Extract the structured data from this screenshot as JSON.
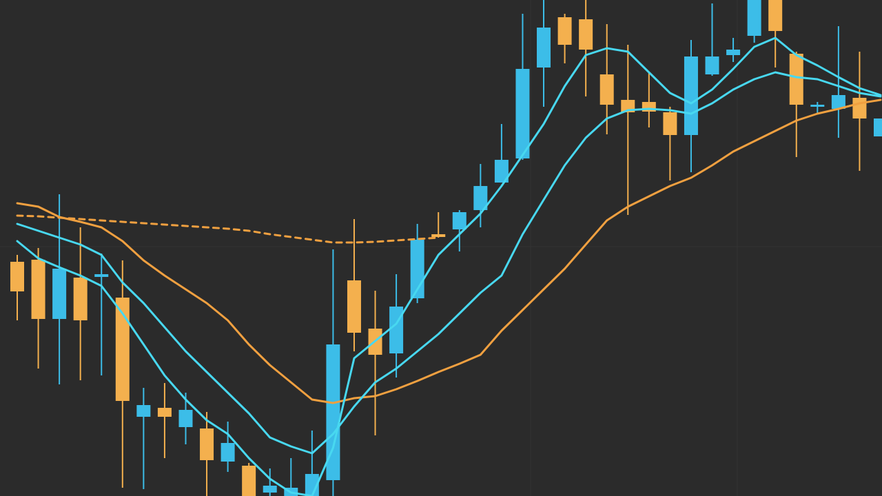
{
  "chart_data": {
    "type": "candlestick",
    "ylim": [
      0,
      720
    ],
    "up_color": "#3cbde8",
    "down_color": "#f4b04e",
    "background": "#2b2b2b",
    "open": [
      340,
      343,
      257,
      317,
      318,
      288,
      115,
      128,
      100,
      98,
      50,
      44,
      5,
      0,
      0,
      23,
      313,
      243,
      207,
      287,
      380,
      387,
      415,
      455,
      490,
      622,
      695,
      692,
      612,
      575,
      572,
      557,
      524,
      612,
      640,
      668,
      720,
      642,
      565,
      562,
      578,
      522
    ],
    "high": [
      350,
      360,
      438,
      390,
      352,
      342,
      157,
      164,
      150,
      122,
      108,
      48,
      40,
      55,
      95,
      358,
      402,
      298,
      322,
      395,
      412,
      415,
      482,
      540,
      700,
      720,
      700,
      720,
      685,
      655,
      615,
      565,
      662,
      715,
      665,
      720,
      720,
      645,
      572,
      682,
      645,
      548
    ],
    "low": [
      255,
      185,
      162,
      168,
      175,
      12,
      10,
      55,
      75,
      0,
      35,
      0,
      0,
      0,
      0,
      0,
      210,
      88,
      172,
      280,
      375,
      355,
      390,
      455,
      488,
      565,
      628,
      580,
      525,
      408,
      535,
      458,
      470,
      610,
      630,
      658,
      622,
      492,
      555,
      520,
      472,
      522
    ],
    "close": [
      297,
      257,
      330,
      255,
      322,
      138,
      132,
      115,
      125,
      52,
      77,
      0,
      15,
      12,
      32,
      220,
      237,
      205,
      275,
      372,
      376,
      412,
      450,
      488,
      620,
      680,
      655,
      648,
      568,
      557,
      558,
      524,
      638,
      638,
      648,
      720,
      675,
      568,
      568,
      582,
      548,
      548
    ],
    "series": [
      {
        "color": "#f0a040",
        "dashed": false,
        "values": [
          425,
          420,
          405,
          398,
          390,
          370,
          342,
          320,
          300,
          280,
          255,
          220,
          190,
          165,
          140,
          135,
          142,
          145,
          155,
          167,
          180,
          192,
          205,
          240,
          270,
          300,
          330,
          365,
          400,
          420,
          435,
          450,
          462,
          480,
          500,
          515,
          530,
          545,
          555,
          562,
          570,
          575
        ]
      },
      {
        "color": "#f0a040",
        "dashed": true,
        "values": [
          407,
          406,
          404,
          402,
          400,
          398,
          396,
          394,
          392,
          390,
          388,
          385,
          380,
          376,
          372,
          368,
          368,
          369,
          371,
          373,
          375,
          null,
          null,
          null,
          null,
          null,
          null,
          null,
          null,
          null,
          null,
          null,
          null,
          null,
          null,
          null,
          null,
          null,
          null,
          null,
          null,
          null
        ]
      },
      {
        "color": "#48d8f0",
        "dashed": false,
        "values": [
          395,
          385,
          375,
          365,
          350,
          310,
          280,
          245,
          210,
          180,
          150,
          120,
          85,
          72,
          62,
          90,
          130,
          165,
          185,
          210,
          235,
          265,
          295,
          320,
          380,
          430,
          480,
          520,
          548,
          560,
          562,
          560,
          555,
          570,
          590,
          605,
          615,
          608,
          605,
          595,
          585,
          580
        ]
      },
      {
        "color": "#48d8f0",
        "dashed": false,
        "values": [
          370,
          345,
          332,
          320,
          305,
          265,
          220,
          175,
          140,
          110,
          90,
          55,
          25,
          5,
          0,
          70,
          200,
          225,
          250,
          300,
          350,
          380,
          410,
          450,
          495,
          540,
          595,
          640,
          650,
          645,
          615,
          585,
          570,
          590,
          620,
          652,
          665,
          640,
          625,
          608,
          592,
          582
        ]
      }
    ]
  }
}
